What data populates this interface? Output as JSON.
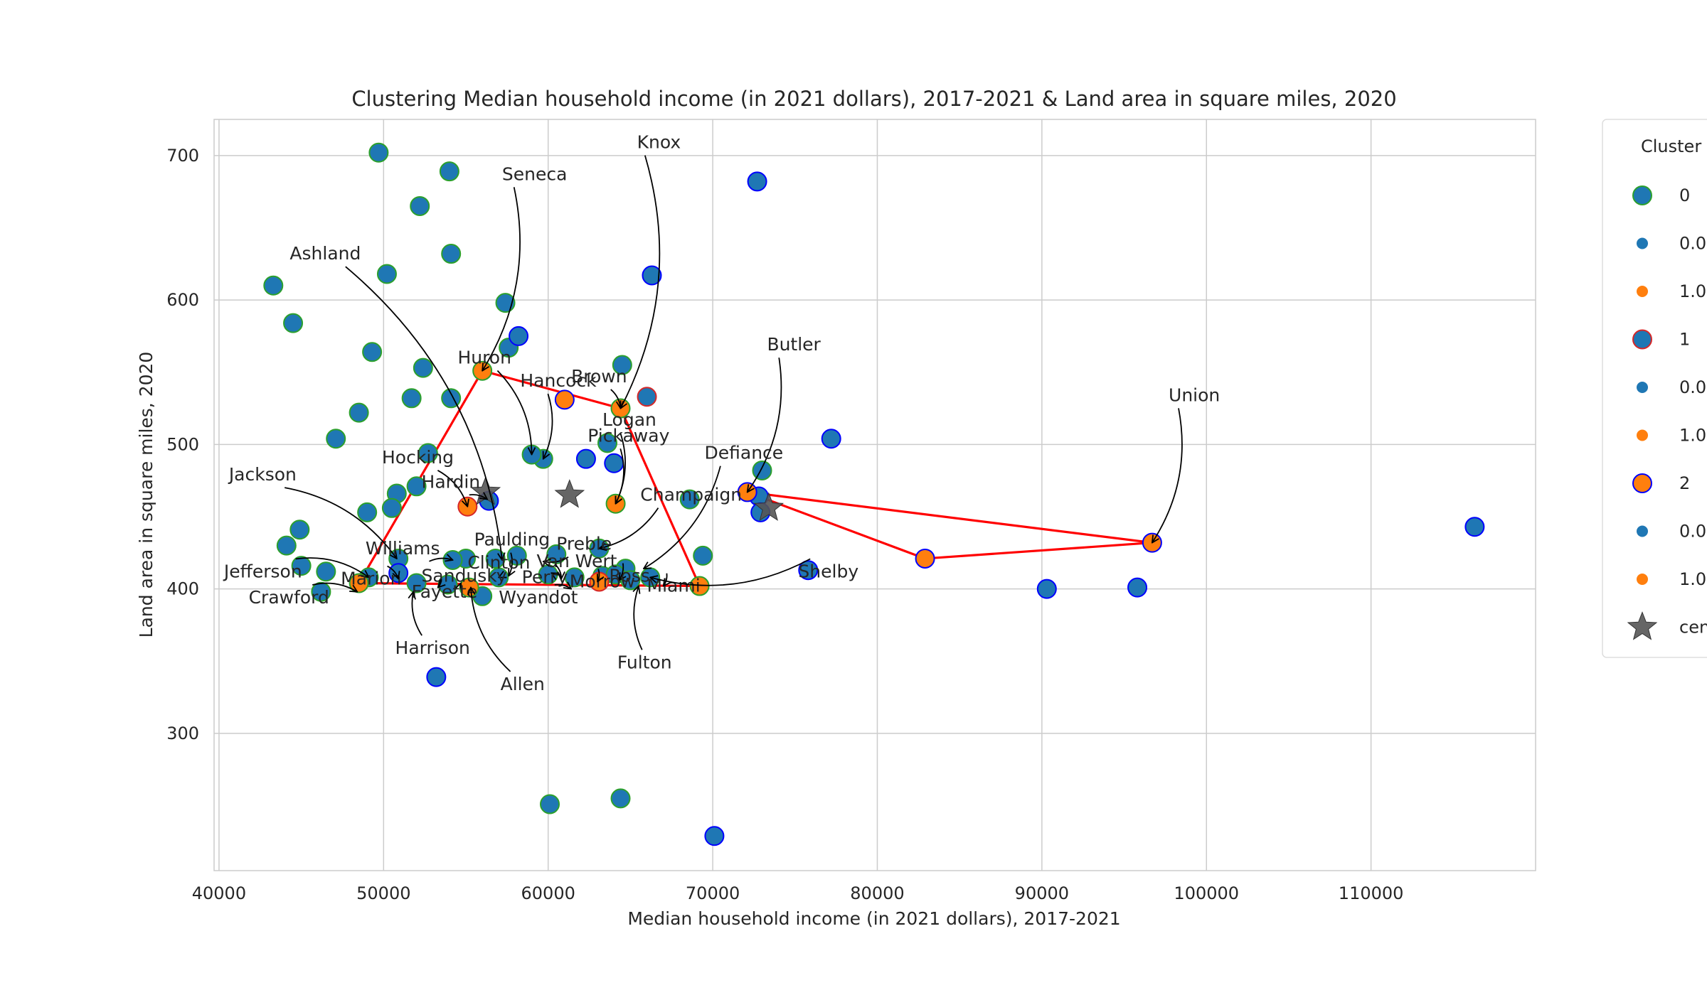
{
  "chart_data": {
    "type": "scatter",
    "title": "Clustering Median household income (in 2021 dollars), 2017-2021 & Land area in square miles, 2020",
    "xlabel": "Median household income (in 2021 dollars), 2017-2021",
    "ylabel": "Land area in square miles, 2020",
    "xlim": [
      39700,
      120000
    ],
    "ylim": [
      205,
      725
    ],
    "xticks": [
      40000,
      50000,
      60000,
      70000,
      80000,
      90000,
      100000,
      110000
    ],
    "yticks": [
      300,
      400,
      500,
      600,
      700
    ],
    "grid": true,
    "legend": {
      "title": "Cluster",
      "placement": "outside-right",
      "entries": [
        {
          "label": "0",
          "kind": "circle-large",
          "fill": "#1f77b4",
          "edge": "#2ca02c"
        },
        {
          "label": "0.0",
          "kind": "dot",
          "fill": "#1f77b4"
        },
        {
          "label": "1.0",
          "kind": "dot",
          "fill": "#ff7f0e"
        },
        {
          "label": "1",
          "kind": "circle-large",
          "fill": "#1f77b4",
          "edge": "#d62728"
        },
        {
          "label": "0.0",
          "kind": "dot",
          "fill": "#1f77b4"
        },
        {
          "label": "1.0",
          "kind": "dot",
          "fill": "#ff7f0e"
        },
        {
          "label": "2",
          "kind": "circle-large",
          "fill": "#ff7f0e",
          "edge": "#0000ff"
        },
        {
          "label": "0.0",
          "kind": "dot",
          "fill": "#1f77b4"
        },
        {
          "label": "1.0",
          "kind": "dot",
          "fill": "#ff7f0e"
        },
        {
          "label": "centroids",
          "kind": "star",
          "fill": "#555555"
        }
      ]
    },
    "colors": {
      "blue": "#1f77b4",
      "orange": "#ff7f0e",
      "green_edge": "#2ca02c",
      "red_edge": "#d62728",
      "blue_edge": "#0000ff",
      "hull": "#ff0000",
      "centroid": "#555555",
      "grid": "#cccccc"
    },
    "series": [
      {
        "cluster": "0",
        "fill": "blue",
        "edge": "green_edge",
        "points": [
          [
            49700,
            702
          ],
          [
            54000,
            689
          ],
          [
            52200,
            665
          ],
          [
            54100,
            632
          ],
          [
            43300,
            610
          ],
          [
            50200,
            618
          ],
          [
            57400,
            598
          ],
          [
            44500,
            584
          ],
          [
            49300,
            564
          ],
          [
            57600,
            567
          ],
          [
            52400,
            553
          ],
          [
            64500,
            555
          ],
          [
            51700,
            532
          ],
          [
            54100,
            532
          ],
          [
            48500,
            522
          ],
          [
            47100,
            504
          ],
          [
            63600,
            501
          ],
          [
            52700,
            494
          ],
          [
            59700,
            490
          ],
          [
            52000,
            471
          ],
          [
            50800,
            466
          ],
          [
            68600,
            462
          ],
          [
            50500,
            456
          ],
          [
            49000,
            453
          ],
          [
            73000,
            482
          ],
          [
            44900,
            441
          ],
          [
            44100,
            430
          ],
          [
            55000,
            421
          ],
          [
            56800,
            421
          ],
          [
            58100,
            423
          ],
          [
            60500,
            424
          ],
          [
            63100,
            428
          ],
          [
            69400,
            423
          ],
          [
            45000,
            416
          ],
          [
            64700,
            414
          ],
          [
            46500,
            412
          ],
          [
            57000,
            408
          ],
          [
            60000,
            410
          ],
          [
            61600,
            408
          ],
          [
            63300,
            409
          ],
          [
            64100,
            410
          ],
          [
            65000,
            406
          ],
          [
            66200,
            408
          ],
          [
            49100,
            408
          ],
          [
            52000,
            404
          ],
          [
            53900,
            403
          ],
          [
            46200,
            398
          ],
          [
            56000,
            395
          ],
          [
            60100,
            251
          ],
          [
            64400,
            255
          ],
          [
            59000,
            493
          ],
          [
            54200,
            420
          ],
          [
            50900,
            421
          ]
        ]
      },
      {
        "cluster": "0",
        "fill": "orange",
        "edge": "green_edge",
        "points": [
          [
            64100,
            459
          ],
          [
            69200,
            402
          ]
        ]
      },
      {
        "cluster": "1",
        "fill": "blue",
        "edge": "red_edge",
        "points": [
          [
            66000,
            533
          ]
        ]
      },
      {
        "cluster": "1",
        "fill": "orange",
        "edge": "red_edge",
        "points": [
          [
            55100,
            457
          ],
          [
            63100,
            405
          ]
        ]
      },
      {
        "cluster": "2",
        "fill": "blue",
        "edge": "blue_edge",
        "points": [
          [
            72700,
            682
          ],
          [
            66300,
            617
          ],
          [
            58200,
            575
          ],
          [
            62300,
            490
          ],
          [
            64000,
            487
          ],
          [
            56400,
            461
          ],
          [
            77200,
            504
          ],
          [
            72800,
            464
          ],
          [
            72900,
            453
          ],
          [
            75800,
            413
          ],
          [
            90300,
            400
          ],
          [
            95800,
            401
          ],
          [
            116300,
            443
          ],
          [
            53200,
            339
          ],
          [
            70100,
            229
          ],
          [
            50900,
            411
          ]
        ]
      },
      {
        "cluster": "2",
        "fill": "orange",
        "edge": "blue_edge",
        "points": [
          [
            61000,
            531
          ],
          [
            82900,
            421
          ],
          [
            96700,
            432
          ],
          [
            72100,
            467
          ]
        ]
      },
      {
        "cluster": "0",
        "fill": "orange",
        "edge": "green_edge",
        "points": [
          [
            56000,
            551
          ],
          [
            64400,
            525
          ],
          [
            48500,
            404
          ],
          [
            55200,
            401
          ]
        ]
      }
    ],
    "centroids": [
      [
        56200,
        467
      ],
      [
        61300,
        465
      ],
      [
        73400,
        456
      ]
    ],
    "hulls": [
      [
        [
          56000,
          551
        ],
        [
          64400,
          525
        ],
        [
          69200,
          402
        ],
        [
          48500,
          404
        ],
        [
          56000,
          551
        ]
      ],
      [
        [
          72100,
          467
        ],
        [
          96700,
          432
        ],
        [
          82900,
          421
        ],
        [
          72100,
          467
        ]
      ]
    ],
    "annotations": [
      {
        "label": "Knox",
        "text": [
          65400,
          705
        ],
        "point": [
          64400,
          525
        ]
      },
      {
        "label": "Seneca",
        "text": [
          57200,
          683
        ],
        "point": [
          56000,
          551
        ]
      },
      {
        "label": "Ashland",
        "text": [
          44300,
          628
        ],
        "point": [
          57200,
          420
        ]
      },
      {
        "label": "Huron",
        "text": [
          54500,
          556
        ],
        "point": [
          59000,
          493
        ]
      },
      {
        "label": "Hancock",
        "text": [
          58300,
          540
        ],
        "point": [
          59700,
          490
        ]
      },
      {
        "label": "Brown",
        "text": [
          61400,
          543
        ],
        "point": [
          64400,
          525
        ]
      },
      {
        "label": "Logan",
        "text": [
          63300,
          513
        ],
        "point": [
          64100,
          459
        ]
      },
      {
        "label": "Pickaway",
        "text": [
          62400,
          502
        ],
        "point": [
          64100,
          459
        ]
      },
      {
        "label": "Butler",
        "text": [
          73300,
          565
        ],
        "point": [
          72100,
          467
        ]
      },
      {
        "label": "Union",
        "text": [
          97700,
          530
        ],
        "point": [
          96700,
          432
        ]
      },
      {
        "label": "Defiance",
        "text": [
          69500,
          490
        ],
        "point": [
          65800,
          414
        ]
      },
      {
        "label": "Champaign",
        "text": [
          65600,
          461
        ],
        "point": [
          63100,
          428
        ]
      },
      {
        "label": "Hocking",
        "text": [
          49900,
          487
        ],
        "point": [
          55100,
          457
        ]
      },
      {
        "label": "Hardin",
        "text": [
          52300,
          470
        ],
        "point": [
          56300,
          462
        ]
      },
      {
        "label": "Jackson",
        "text": [
          40600,
          475
        ],
        "point": [
          50800,
          421
        ]
      },
      {
        "label": "Williams",
        "text": [
          48900,
          424
        ],
        "point": [
          54200,
          420
        ]
      },
      {
        "label": "Paulding",
        "text": [
          55500,
          430
        ],
        "point": [
          57600,
          409
        ]
      },
      {
        "label": "Preble",
        "text": [
          60500,
          427
        ],
        "point": [
          59700,
          419
        ]
      },
      {
        "label": "Clinton",
        "text": [
          55100,
          414
        ],
        "point": [
          57000,
          408
        ]
      },
      {
        "label": "Van Wert",
        "text": [
          59300,
          415
        ],
        "point": [
          60200,
          411
        ]
      },
      {
        "label": "Jefferson",
        "text": [
          40300,
          408
        ],
        "point": [
          49100,
          408
        ]
      },
      {
        "label": "Marion",
        "text": [
          47400,
          403
        ],
        "point": [
          50900,
          407
        ]
      },
      {
        "label": "Sandusky",
        "text": [
          52300,
          405
        ],
        "point": [
          54700,
          404
        ]
      },
      {
        "label": "Perry",
        "text": [
          58400,
          404
        ],
        "point": [
          60800,
          407
        ]
      },
      {
        "label": "Ross",
        "text": [
          63700,
          405
        ],
        "point": [
          64300,
          406
        ]
      },
      {
        "label": "Morrow",
        "text": [
          61300,
          401
        ],
        "point": [
          63000,
          405
        ]
      },
      {
        "label": "Miami",
        "text": [
          66000,
          398
        ],
        "point": [
          67000,
          402
        ]
      },
      {
        "label": "Shelby",
        "text": [
          75200,
          408
        ],
        "point": [
          66200,
          408
        ]
      },
      {
        "label": "Fayette",
        "text": [
          51700,
          394
        ],
        "point": [
          53300,
          401
        ]
      },
      {
        "label": "Crawford",
        "text": [
          41800,
          390
        ],
        "point": [
          48400,
          398
        ]
      },
      {
        "label": "Wyandot",
        "text": [
          57000,
          390
        ],
        "point": [
          61400,
          400
        ]
      },
      {
        "label": "Harrison",
        "text": [
          50700,
          355
        ],
        "point": [
          51800,
          398
        ]
      },
      {
        "label": "Fulton",
        "text": [
          64200,
          345
        ],
        "point": [
          65500,
          402
        ]
      },
      {
        "label": "Allen",
        "text": [
          57100,
          330
        ],
        "point": [
          55300,
          401
        ]
      }
    ]
  }
}
